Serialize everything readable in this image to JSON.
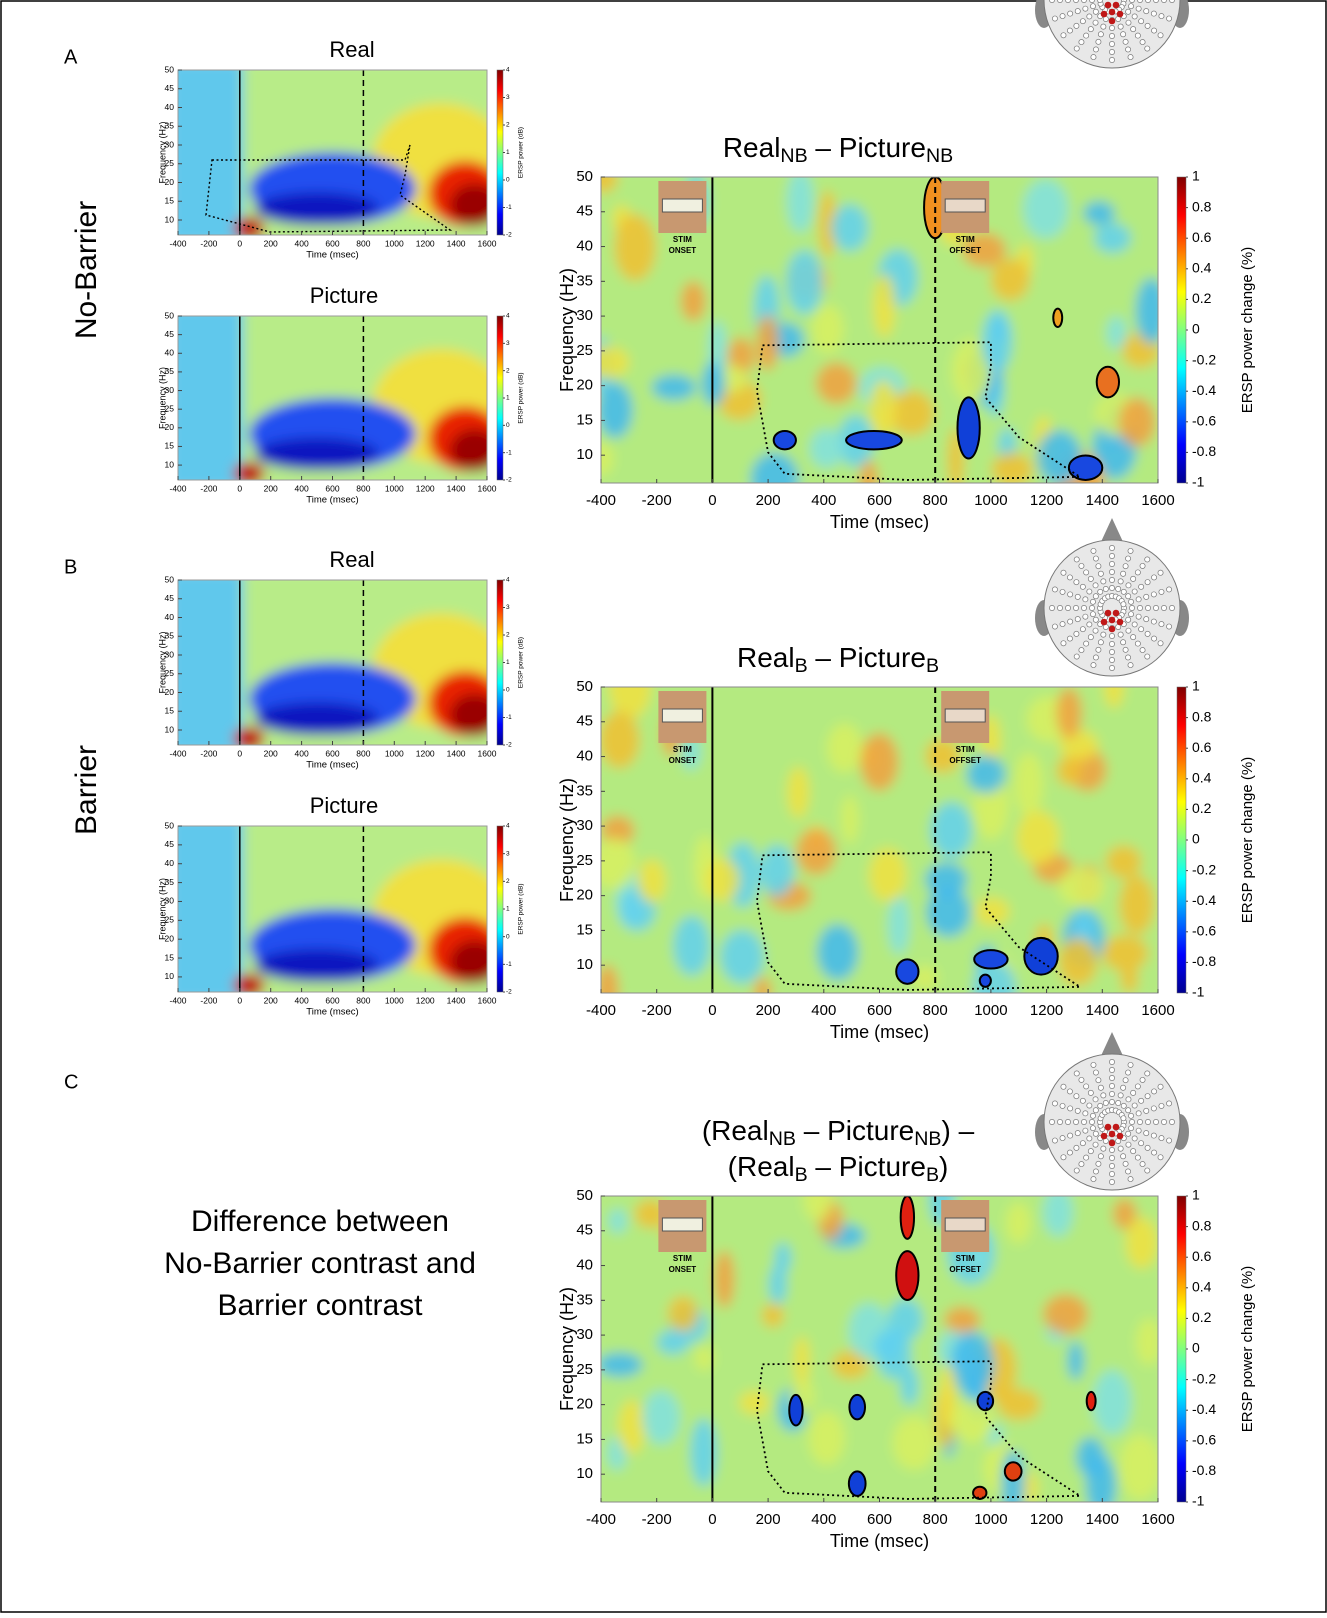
{
  "panels": [
    {
      "label": "A",
      "row_label": [
        "No-Barrier"
      ]
    },
    {
      "label": "B",
      "row_label": [
        "Barrier"
      ]
    },
    {
      "label": "C",
      "row_label": [
        "Difference between",
        "No-Barrier contrast and",
        "Barrier contrast"
      ]
    }
  ],
  "chart_data": [
    {
      "type": "heatmap",
      "title": [
        [
          {
            "text": "Real"
          }
        ]
      ],
      "xlabel": "Time (msec)",
      "ylabel": "Frequency (Hz)",
      "xlim": [
        -400,
        1600
      ],
      "ylim": [
        6,
        50
      ],
      "xticks": [
        -400,
        -200,
        0,
        200,
        400,
        600,
        800,
        1000,
        1200,
        1400,
        1600
      ],
      "yticks": [
        10,
        15,
        20,
        25,
        30,
        35,
        40,
        45,
        50
      ],
      "colorbar_label": "ERSP power (dB)",
      "clim": [
        -2,
        4
      ],
      "cticks": [
        -2,
        -1,
        0,
        1,
        2,
        3,
        4
      ],
      "colormap": "jet",
      "event_lines": [
        {
          "x": 0,
          "style": "solid"
        },
        {
          "x": 800,
          "style": "dashed"
        }
      ]
    },
    {
      "type": "heatmap",
      "title": [
        [
          {
            "text": "Picture"
          }
        ]
      ],
      "xlabel": "Time (msec)",
      "ylabel": "Frequency (Hz)",
      "xlim": [
        -400,
        1600
      ],
      "ylim": [
        6,
        50
      ],
      "xticks": [
        -400,
        -200,
        0,
        200,
        400,
        600,
        800,
        1000,
        1200,
        1400,
        1600
      ],
      "yticks": [
        10,
        15,
        20,
        25,
        30,
        35,
        40,
        45,
        50
      ],
      "colorbar_label": "ERSP power (dB)",
      "clim": [
        -2,
        4
      ],
      "cticks": [
        -2,
        -1,
        0,
        1,
        2,
        3,
        4
      ],
      "colormap": "jet",
      "event_lines": [
        {
          "x": 0,
          "style": "solid"
        },
        {
          "x": 800,
          "style": "dashed"
        }
      ]
    },
    {
      "type": "heatmap",
      "title": [
        [
          {
            "text": "Real"
          },
          {
            "sub": "NB"
          },
          {
            "text": " – Picture"
          },
          {
            "sub": "NB"
          }
        ]
      ],
      "xlabel": "Time (msec)",
      "ylabel": "Frequency (Hz)",
      "xlim": [
        -400,
        1600
      ],
      "ylim": [
        6,
        50
      ],
      "xticks": [
        -400,
        -200,
        0,
        200,
        400,
        600,
        800,
        1000,
        1200,
        1400,
        1600
      ],
      "yticks": [
        10,
        15,
        20,
        25,
        30,
        35,
        40,
        45,
        50
      ],
      "colorbar_label": "ERSP power change (%)",
      "clim": [
        -1,
        1
      ],
      "cticks": [
        -1,
        -0.8,
        -0.6,
        -0.4,
        -0.2,
        0,
        0.2,
        0.4,
        0.6,
        0.8,
        1
      ],
      "colormap": "jet",
      "event_lines": [
        {
          "x": 0,
          "style": "solid",
          "label": [
            "STIM",
            "ONSET"
          ]
        },
        {
          "x": 800,
          "style": "dashed",
          "label": [
            "STIM",
            "OFFSET"
          ]
        }
      ]
    },
    {
      "type": "heatmap",
      "title": [
        [
          {
            "text": "Real"
          }
        ]
      ],
      "xlabel": "Time (msec)",
      "ylabel": "Frequency (Hz)",
      "xlim": [
        -400,
        1600
      ],
      "ylim": [
        6,
        50
      ],
      "xticks": [
        -400,
        -200,
        0,
        200,
        400,
        600,
        800,
        1000,
        1200,
        1400,
        1600
      ],
      "yticks": [
        10,
        15,
        20,
        25,
        30,
        35,
        40,
        45,
        50
      ],
      "colorbar_label": "ERSP power (dB)",
      "clim": [
        -2,
        4
      ],
      "cticks": [
        -2,
        -1,
        0,
        1,
        2,
        3,
        4
      ],
      "colormap": "jet",
      "event_lines": [
        {
          "x": 0,
          "style": "solid"
        },
        {
          "x": 800,
          "style": "dashed"
        }
      ]
    },
    {
      "type": "heatmap",
      "title": [
        [
          {
            "text": "Picture"
          }
        ]
      ],
      "xlabel": "Time (msec)",
      "ylabel": "Frequency (Hz)",
      "xlim": [
        -400,
        1600
      ],
      "ylim": [
        6,
        50
      ],
      "xticks": [
        -400,
        -200,
        0,
        200,
        400,
        600,
        800,
        1000,
        1200,
        1400,
        1600
      ],
      "yticks": [
        10,
        15,
        20,
        25,
        30,
        35,
        40,
        45,
        50
      ],
      "colorbar_label": "ERSP power (dB)",
      "clim": [
        -2,
        4
      ],
      "cticks": [
        -2,
        -1,
        0,
        1,
        2,
        3,
        4
      ],
      "colormap": "jet",
      "event_lines": [
        {
          "x": 0,
          "style": "solid"
        },
        {
          "x": 800,
          "style": "dashed"
        }
      ]
    },
    {
      "type": "heatmap",
      "title": [
        [
          {
            "text": "Real"
          },
          {
            "sub": "B"
          },
          {
            "text": " – Picture"
          },
          {
            "sub": "B"
          }
        ]
      ],
      "xlabel": "Time (msec)",
      "ylabel": "Frequency (Hz)",
      "xlim": [
        -400,
        1600
      ],
      "ylim": [
        6,
        50
      ],
      "xticks": [
        -400,
        -200,
        0,
        200,
        400,
        600,
        800,
        1000,
        1200,
        1400,
        1600
      ],
      "yticks": [
        10,
        15,
        20,
        25,
        30,
        35,
        40,
        45,
        50
      ],
      "colorbar_label": "ERSP power change (%)",
      "clim": [
        -1,
        1
      ],
      "cticks": [
        -1,
        -0.8,
        -0.6,
        -0.4,
        -0.2,
        0,
        0.2,
        0.4,
        0.6,
        0.8,
        1
      ],
      "colormap": "jet",
      "event_lines": [
        {
          "x": 0,
          "style": "solid",
          "label": [
            "STIM",
            "ONSET"
          ]
        },
        {
          "x": 800,
          "style": "dashed",
          "label": [
            "STIM",
            "OFFSET"
          ]
        }
      ]
    },
    {
      "type": "heatmap",
      "title": [
        [
          {
            "text": "(Real"
          },
          {
            "sub": "NB"
          },
          {
            "text": " – Picture"
          },
          {
            "sub": "NB"
          },
          {
            "text": ") –"
          }
        ],
        [
          {
            "text": "(Real"
          },
          {
            "sub": "B"
          },
          {
            "text": " – Picture"
          },
          {
            "sub": "B"
          },
          {
            "text": ")"
          }
        ]
      ],
      "xlabel": "Time (msec)",
      "ylabel": "Frequency (Hz)",
      "xlim": [
        -400,
        1600
      ],
      "ylim": [
        6,
        50
      ],
      "xticks": [
        -400,
        -200,
        0,
        200,
        400,
        600,
        800,
        1000,
        1200,
        1400,
        1600
      ],
      "yticks": [
        10,
        15,
        20,
        25,
        30,
        35,
        40,
        45,
        50
      ],
      "colorbar_label": "ERSP power change (%)",
      "clim": [
        -1,
        1
      ],
      "cticks": [
        -1,
        -0.8,
        -0.6,
        -0.4,
        -0.2,
        0,
        0.2,
        0.4,
        0.6,
        0.8,
        1
      ],
      "colormap": "jet",
      "event_lines": [
        {
          "x": 0,
          "style": "solid",
          "label": [
            "STIM",
            "ONSET"
          ]
        },
        {
          "x": 800,
          "style": "dashed",
          "label": [
            "STIM",
            "OFFSET"
          ]
        }
      ]
    }
  ]
}
